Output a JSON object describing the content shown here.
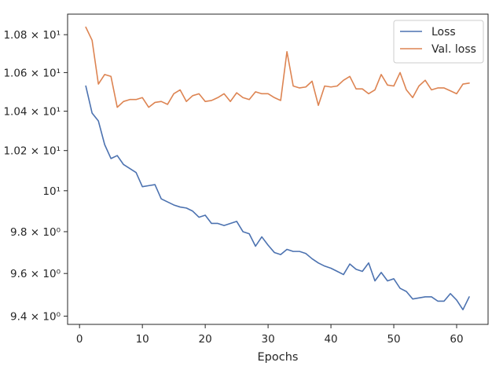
{
  "chart_data": {
    "type": "line",
    "xlabel": "Epochs",
    "ylabel": "",
    "yscale": "log",
    "xlim": [
      -1.9,
      65.0
    ],
    "ylim": [
      9.362,
      10.91
    ],
    "grid": false,
    "legend_placement": "top-right",
    "xticks": [
      0,
      10,
      20,
      30,
      40,
      50,
      60
    ],
    "xtick_labels": [
      "0",
      "10",
      "20",
      "30",
      "40",
      "50",
      "60"
    ],
    "yticks": [
      9.4,
      9.6,
      9.8,
      10.0,
      10.2,
      10.4,
      10.6,
      10.8
    ],
    "ytick_labels": [
      "9.4 × 10⁰",
      "9.6 × 10⁰",
      "9.8 × 10⁰",
      "10¹",
      "1.02 × 10¹",
      "1.04 × 10¹",
      "1.06 × 10¹",
      "1.08 × 10¹"
    ],
    "series": [
      {
        "name": "Loss",
        "color": "#4c72b0",
        "x": [
          1,
          2,
          3,
          4,
          5,
          6,
          7,
          8,
          9,
          10,
          11,
          12,
          13,
          14,
          15,
          16,
          17,
          18,
          19,
          20,
          21,
          22,
          23,
          24,
          25,
          26,
          27,
          28,
          29,
          30,
          31,
          32,
          33,
          34,
          35,
          36,
          37,
          38,
          39,
          40,
          41,
          42,
          43,
          44,
          45,
          46,
          47,
          48,
          49,
          50,
          51,
          52,
          53,
          54,
          55,
          56,
          57,
          58,
          59,
          60,
          61,
          62
        ],
        "values": [
          10.53,
          10.39,
          10.35,
          10.23,
          10.16,
          10.175,
          10.13,
          10.11,
          10.09,
          10.02,
          10.025,
          10.03,
          9.96,
          9.945,
          9.93,
          9.92,
          9.915,
          9.9,
          9.87,
          9.88,
          9.84,
          9.84,
          9.83,
          9.84,
          9.85,
          9.8,
          9.79,
          9.73,
          9.775,
          9.735,
          9.7,
          9.69,
          9.715,
          9.705,
          9.705,
          9.695,
          9.67,
          9.65,
          9.635,
          9.625,
          9.61,
          9.595,
          9.645,
          9.62,
          9.61,
          9.65,
          9.565,
          9.605,
          9.565,
          9.575,
          9.53,
          9.515,
          9.48,
          9.485,
          9.49,
          9.49,
          9.47,
          9.47,
          9.505,
          9.475,
          9.43,
          9.49
        ]
      },
      {
        "name": "Val. loss",
        "color": "#dd8452",
        "x": [
          1,
          2,
          3,
          4,
          5,
          6,
          7,
          8,
          9,
          10,
          11,
          12,
          13,
          14,
          15,
          16,
          17,
          18,
          19,
          20,
          21,
          22,
          23,
          24,
          25,
          26,
          27,
          28,
          29,
          30,
          31,
          32,
          33,
          34,
          35,
          36,
          37,
          38,
          39,
          40,
          41,
          42,
          43,
          44,
          45,
          46,
          47,
          48,
          49,
          50,
          51,
          52,
          53,
          54,
          55,
          56,
          57,
          58,
          59,
          60,
          61,
          62
        ],
        "values": [
          10.84,
          10.77,
          10.54,
          10.59,
          10.58,
          10.42,
          10.45,
          10.46,
          10.46,
          10.47,
          10.42,
          10.445,
          10.45,
          10.435,
          10.49,
          10.51,
          10.45,
          10.48,
          10.49,
          10.45,
          10.455,
          10.47,
          10.49,
          10.45,
          10.495,
          10.47,
          10.46,
          10.5,
          10.49,
          10.49,
          10.47,
          10.455,
          10.71,
          10.53,
          10.52,
          10.525,
          10.555,
          10.43,
          10.53,
          10.525,
          10.53,
          10.56,
          10.58,
          10.515,
          10.515,
          10.49,
          10.51,
          10.59,
          10.535,
          10.53,
          10.6,
          10.51,
          10.47,
          10.53,
          10.56,
          10.51,
          10.52,
          10.52,
          10.505,
          10.49,
          10.54,
          10.545
        ]
      }
    ]
  }
}
